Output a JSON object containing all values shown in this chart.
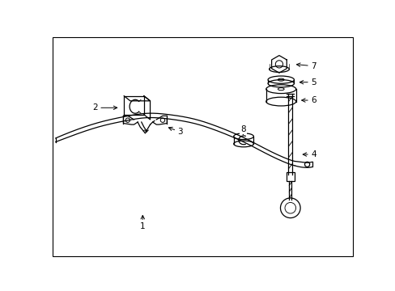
{
  "background_color": "#ffffff",
  "border_color": "#000000",
  "line_color": "#000000",
  "text_color": "#000000",
  "figsize": [
    4.89,
    3.6
  ],
  "dpi": 100
}
